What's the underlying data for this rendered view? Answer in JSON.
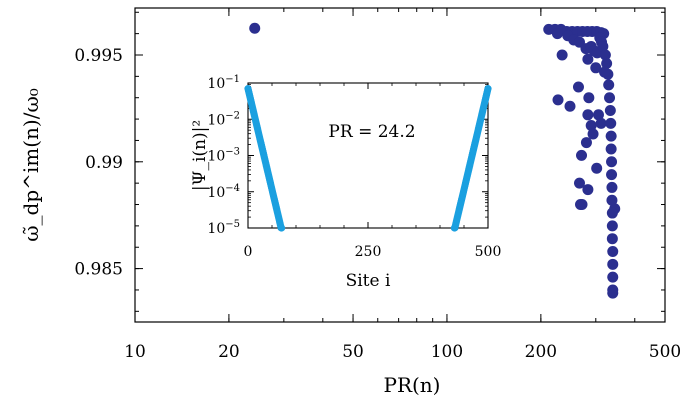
{
  "chart_data": [
    {
      "type": "scatter",
      "xlabel": "PR(n)",
      "ylabel": "ω̃_dp^im(n)/ω₀",
      "xscale": "log",
      "xlim": [
        10,
        500
      ],
      "ylim": [
        0.9825,
        0.9972
      ],
      "xticks": [
        10,
        20,
        50,
        100,
        200,
        500
      ],
      "xtick_labels": [
        "10",
        "20",
        "50",
        "100",
        "200",
        "500"
      ],
      "yticks": [
        0.985,
        0.99,
        0.995
      ],
      "ytick_labels": [
        "0.985",
        "0.99",
        "0.995"
      ],
      "color": "#2b2f8f",
      "points": [
        [
          24.2,
          0.99625
        ],
        [
          212,
          0.9962
        ],
        [
          222,
          0.9962
        ],
        [
          232,
          0.9962
        ],
        [
          242,
          0.9961
        ],
        [
          252,
          0.9961
        ],
        [
          262,
          0.9961
        ],
        [
          272,
          0.9961
        ],
        [
          282,
          0.9961
        ],
        [
          292,
          0.9961
        ],
        [
          302,
          0.9961
        ],
        [
          312,
          0.99605
        ],
        [
          318,
          0.996
        ],
        [
          226,
          0.996
        ],
        [
          244,
          0.9959
        ],
        [
          255,
          0.9957
        ],
        [
          266,
          0.9956
        ],
        [
          279,
          0.9953
        ],
        [
          283,
          0.9948
        ],
        [
          309,
          0.9958
        ],
        [
          290,
          0.9954
        ],
        [
          296,
          0.9952
        ],
        [
          303,
          0.9951
        ],
        [
          313,
          0.9956
        ],
        [
          316,
          0.9954
        ],
        [
          322,
          0.995
        ],
        [
          325,
          0.9946
        ],
        [
          328,
          0.9941
        ],
        [
          330,
          0.9936
        ],
        [
          332,
          0.993
        ],
        [
          234,
          0.995
        ],
        [
          264,
          0.9935
        ],
        [
          285,
          0.993
        ],
        [
          300,
          0.9944
        ],
        [
          320,
          0.9942
        ],
        [
          227,
          0.9929
        ],
        [
          248,
          0.9926
        ],
        [
          283,
          0.9922
        ],
        [
          290,
          0.9917
        ],
        [
          306,
          0.9922
        ],
        [
          312,
          0.9918
        ],
        [
          280,
          0.9909
        ],
        [
          270,
          0.9903
        ],
        [
          294,
          0.9913
        ],
        [
          266,
          0.989
        ],
        [
          268,
          0.988
        ],
        [
          271,
          0.988
        ],
        [
          283,
          0.9887
        ],
        [
          302,
          0.9897
        ],
        [
          345,
          0.9878
        ],
        [
          334,
          0.9924
        ],
        [
          335,
          0.9918
        ],
        [
          336,
          0.9912
        ],
        [
          336,
          0.9906
        ],
        [
          337,
          0.99
        ],
        [
          337,
          0.9894
        ],
        [
          338,
          0.9888
        ],
        [
          338,
          0.9882
        ],
        [
          339,
          0.9876
        ],
        [
          339,
          0.987
        ],
        [
          339,
          0.9864
        ],
        [
          340,
          0.9858
        ],
        [
          340,
          0.9852
        ],
        [
          340,
          0.9846
        ],
        [
          340,
          0.984
        ],
        [
          340,
          0.98385
        ]
      ]
    },
    {
      "type": "scatter",
      "inset": true,
      "xlabel": "Site i",
      "ylabel": "|Ψ_i(n)|²",
      "yscale": "log",
      "xlim": [
        0,
        500
      ],
      "ylim": [
        1e-05,
        0.1
      ],
      "xticks": [
        0,
        250,
        500
      ],
      "xtick_labels": [
        "0",
        "250",
        "500"
      ],
      "yticks": [
        1e-05,
        0.0001,
        0.001,
        0.01,
        0.1
      ],
      "color": "#1ba0e0",
      "annotation": "PR = 24.2",
      "profile": {
        "peak": 0.07,
        "decay_length_sites": 7.8,
        "floor": 1e-05,
        "left_edge": 0,
        "right_edge": 500
      }
    }
  ]
}
